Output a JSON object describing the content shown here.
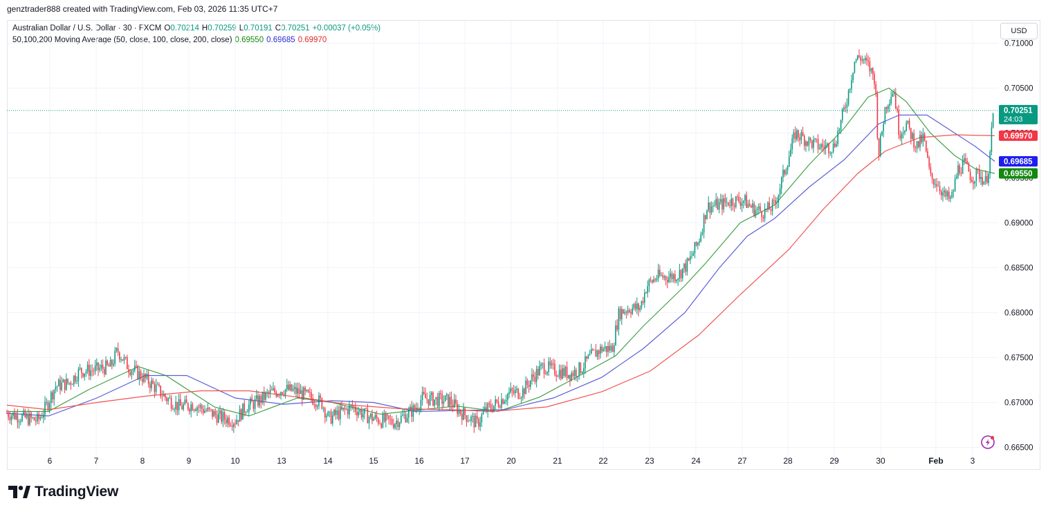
{
  "header": {
    "attribution": "genztrader888 created with TradingView.com, Feb 03, 2026 11:35 UTC+7"
  },
  "legend": {
    "symbol": "Australian Dollar / U.S. Dollar · 30 · FXCM",
    "o_label": "O",
    "o_value": "0.70214",
    "h_label": "H",
    "h_value": "0.70259",
    "l_label": "L",
    "l_value": "0.70191",
    "c_label": "C",
    "c_value": "0.70251",
    "change": "+0.00037 (+0.05%)",
    "ma_title": "50,100,200 Moving Average (50, close, 100, close, 200, close)",
    "ma50": "0.69550",
    "ma100": "0.69685",
    "ma200": "0.69970"
  },
  "currency_button": "USD",
  "countdown": "24:03",
  "brand": "TradingView",
  "colors": {
    "up": "#089981",
    "down": "#f23645",
    "ma50": "#43a047",
    "ma100": "#5b5fd6",
    "ma200": "#f05350",
    "text": "#131722"
  },
  "chart_data": {
    "type": "line",
    "ylim": [
      0.6625,
      0.7125
    ],
    "x_range": [
      0,
      1433
    ],
    "y_ticks": [
      "0.71000",
      "0.70500",
      "0.70000",
      "0.69500",
      "0.69000",
      "0.68500",
      "0.68000",
      "0.67500",
      "0.67000",
      "0.66500"
    ],
    "y_tick_values": [
      0.71,
      0.705,
      0.7,
      0.695,
      0.69,
      0.685,
      0.68,
      0.675,
      0.67,
      0.665
    ],
    "x_ticks": [
      {
        "label": "6",
        "x": 62
      },
      {
        "label": "7",
        "x": 129
      },
      {
        "label": "8",
        "x": 196
      },
      {
        "label": "9",
        "x": 263
      },
      {
        "label": "10",
        "x": 330
      },
      {
        "label": "13",
        "x": 397
      },
      {
        "label": "14",
        "x": 464
      },
      {
        "label": "15",
        "x": 530
      },
      {
        "label": "16",
        "x": 596
      },
      {
        "label": "17",
        "x": 662
      },
      {
        "label": "20",
        "x": 729
      },
      {
        "label": "21",
        "x": 796
      },
      {
        "label": "22",
        "x": 862
      },
      {
        "label": "23",
        "x": 929
      },
      {
        "label": "24",
        "x": 996
      },
      {
        "label": "27",
        "x": 1063
      },
      {
        "label": "28",
        "x": 1129
      },
      {
        "label": "29",
        "x": 1196
      },
      {
        "label": "30",
        "x": 1263
      },
      {
        "label": "Feb",
        "x": 1343,
        "bold": true
      },
      {
        "label": "3",
        "x": 1396
      }
    ],
    "price_path": [
      [
        0,
        0.6688
      ],
      [
        15,
        0.6685
      ],
      [
        30,
        0.6682
      ],
      [
        45,
        0.668
      ],
      [
        55,
        0.6693
      ],
      [
        70,
        0.6718
      ],
      [
        90,
        0.6722
      ],
      [
        105,
        0.6735
      ],
      [
        125,
        0.6736
      ],
      [
        150,
        0.674
      ],
      [
        160,
        0.6758
      ],
      [
        175,
        0.674
      ],
      [
        190,
        0.6732
      ],
      [
        210,
        0.672
      ],
      [
        230,
        0.6705
      ],
      [
        250,
        0.6695
      ],
      [
        270,
        0.6698
      ],
      [
        290,
        0.669
      ],
      [
        310,
        0.6683
      ],
      [
        330,
        0.668
      ],
      [
        345,
        0.6695
      ],
      [
        360,
        0.67
      ],
      [
        380,
        0.671
      ],
      [
        400,
        0.6715
      ],
      [
        420,
        0.6712
      ],
      [
        440,
        0.6705
      ],
      [
        455,
        0.67
      ],
      [
        465,
        0.6682
      ],
      [
        480,
        0.6688
      ],
      [
        500,
        0.6695
      ],
      [
        520,
        0.6685
      ],
      [
        540,
        0.668
      ],
      [
        560,
        0.6678
      ],
      [
        575,
        0.6685
      ],
      [
        590,
        0.6693
      ],
      [
        600,
        0.6705
      ],
      [
        620,
        0.6703
      ],
      [
        640,
        0.6702
      ],
      [
        655,
        0.669
      ],
      [
        670,
        0.6682
      ],
      [
        680,
        0.6676
      ],
      [
        690,
        0.669
      ],
      [
        710,
        0.67
      ],
      [
        725,
        0.671
      ],
      [
        745,
        0.6712
      ],
      [
        760,
        0.6728
      ],
      [
        775,
        0.674
      ],
      [
        795,
        0.6735
      ],
      [
        815,
        0.6732
      ],
      [
        830,
        0.6738
      ],
      [
        845,
        0.6752
      ],
      [
        860,
        0.676
      ],
      [
        875,
        0.676
      ],
      [
        885,
        0.68
      ],
      [
        900,
        0.6805
      ],
      [
        915,
        0.6805
      ],
      [
        925,
        0.683
      ],
      [
        940,
        0.684
      ],
      [
        955,
        0.684
      ],
      [
        970,
        0.6842
      ],
      [
        985,
        0.6855
      ],
      [
        1000,
        0.688
      ],
      [
        1012,
        0.6918
      ],
      [
        1030,
        0.692
      ],
      [
        1050,
        0.6925
      ],
      [
        1065,
        0.6925
      ],
      [
        1080,
        0.6915
      ],
      [
        1095,
        0.6912
      ],
      [
        1110,
        0.692
      ],
      [
        1125,
        0.696
      ],
      [
        1140,
        0.7
      ],
      [
        1160,
        0.699
      ],
      [
        1175,
        0.6985
      ],
      [
        1195,
        0.6985
      ],
      [
        1205,
        0.701
      ],
      [
        1215,
        0.704
      ],
      [
        1225,
        0.708
      ],
      [
        1233,
        0.7085
      ],
      [
        1245,
        0.7075
      ],
      [
        1255,
        0.706
      ],
      [
        1260,
        0.6975
      ],
      [
        1270,
        0.703
      ],
      [
        1282,
        0.705
      ],
      [
        1290,
        0.7
      ],
      [
        1300,
        0.701
      ],
      [
        1315,
        0.6985
      ],
      [
        1325,
        0.6995
      ],
      [
        1335,
        0.695
      ],
      [
        1345,
        0.6945
      ],
      [
        1355,
        0.693
      ],
      [
        1365,
        0.6925
      ],
      [
        1375,
        0.696
      ],
      [
        1385,
        0.6965
      ],
      [
        1395,
        0.695
      ],
      [
        1405,
        0.6955
      ],
      [
        1415,
        0.6945
      ],
      [
        1420,
        0.6965
      ],
      [
        1426,
        0.7025
      ]
    ],
    "series": [
      {
        "name": "MA 50",
        "color": "#43a047",
        "last": 0.6955,
        "path": [
          [
            0,
            0.669
          ],
          [
            60,
            0.669
          ],
          [
            120,
            0.6715
          ],
          [
            190,
            0.674
          ],
          [
            230,
            0.673
          ],
          [
            300,
            0.6695
          ],
          [
            350,
            0.6685
          ],
          [
            420,
            0.6705
          ],
          [
            470,
            0.67
          ],
          [
            540,
            0.6687
          ],
          [
            600,
            0.6692
          ],
          [
            650,
            0.6696
          ],
          [
            710,
            0.669
          ],
          [
            770,
            0.6706
          ],
          [
            840,
            0.6735
          ],
          [
            880,
            0.6752
          ],
          [
            920,
            0.6785
          ],
          [
            980,
            0.683
          ],
          [
            1010,
            0.6855
          ],
          [
            1060,
            0.69
          ],
          [
            1110,
            0.692
          ],
          [
            1160,
            0.6965
          ],
          [
            1210,
            0.7005
          ],
          [
            1245,
            0.704
          ],
          [
            1275,
            0.705
          ],
          [
            1300,
            0.7035
          ],
          [
            1335,
            0.7
          ],
          [
            1370,
            0.6975
          ],
          [
            1400,
            0.696
          ],
          [
            1428,
            0.6955
          ]
        ]
      },
      {
        "name": "MA 100",
        "color": "#5b5fd6",
        "last": 0.69685,
        "path": [
          [
            0,
            0.6688
          ],
          [
            60,
            0.6685
          ],
          [
            130,
            0.6705
          ],
          [
            200,
            0.673
          ],
          [
            260,
            0.673
          ],
          [
            330,
            0.6705
          ],
          [
            400,
            0.6698
          ],
          [
            470,
            0.6702
          ],
          [
            530,
            0.67
          ],
          [
            590,
            0.669
          ],
          [
            650,
            0.6691
          ],
          [
            720,
            0.6692
          ],
          [
            790,
            0.6705
          ],
          [
            860,
            0.6728
          ],
          [
            920,
            0.676
          ],
          [
            980,
            0.68
          ],
          [
            1030,
            0.685
          ],
          [
            1070,
            0.6885
          ],
          [
            1110,
            0.6905
          ],
          [
            1160,
            0.694
          ],
          [
            1210,
            0.697
          ],
          [
            1260,
            0.701
          ],
          [
            1290,
            0.702
          ],
          [
            1330,
            0.702
          ],
          [
            1370,
            0.7
          ],
          [
            1400,
            0.6985
          ],
          [
            1428,
            0.69685
          ]
        ]
      },
      {
        "name": "MA 200",
        "color": "#f05350",
        "last": 0.6997,
        "path": [
          [
            0,
            0.6697
          ],
          [
            60,
            0.6692
          ],
          [
            130,
            0.67
          ],
          [
            200,
            0.6707
          ],
          [
            280,
            0.6713
          ],
          [
            350,
            0.6713
          ],
          [
            430,
            0.6705
          ],
          [
            500,
            0.6697
          ],
          [
            570,
            0.6693
          ],
          [
            640,
            0.6692
          ],
          [
            700,
            0.669
          ],
          [
            780,
            0.6695
          ],
          [
            860,
            0.6712
          ],
          [
            930,
            0.6735
          ],
          [
            1000,
            0.6775
          ],
          [
            1060,
            0.682
          ],
          [
            1130,
            0.687
          ],
          [
            1180,
            0.6915
          ],
          [
            1230,
            0.6955
          ],
          [
            1270,
            0.698
          ],
          [
            1320,
            0.6995
          ],
          [
            1370,
            0.6998
          ],
          [
            1428,
            0.6997
          ]
        ]
      }
    ],
    "price_labels": [
      {
        "value": 0.70251,
        "text": "0.70251",
        "color": "#089981",
        "countdown": true
      },
      {
        "value": 0.6997,
        "text": "0.69970",
        "color": "#f23645"
      },
      {
        "value": 0.69685,
        "text": "0.69685",
        "color": "#1e1ef0"
      },
      {
        "value": 0.6955,
        "text": "0.69550",
        "color": "#12880f"
      }
    ]
  }
}
